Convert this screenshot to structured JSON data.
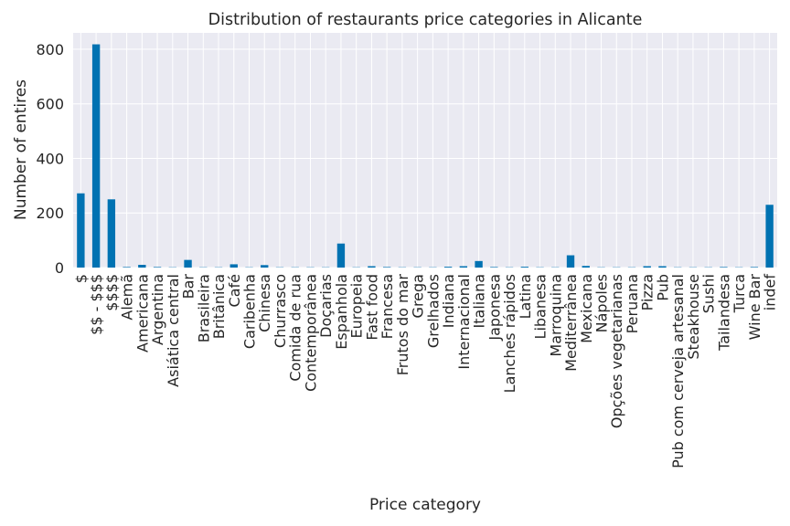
{
  "chart_data": {
    "type": "bar",
    "title": "Distribution of restaurants price categories in Alicante",
    "xlabel": "Price category",
    "ylabel": "Number of entires",
    "ylim": [
      0,
      860
    ],
    "yticks": [
      0,
      200,
      400,
      600,
      800
    ],
    "grid": true,
    "legend": "none",
    "categories": [
      "$",
      "$$ - $$$",
      "$$$$",
      "Alemã",
      "Americana",
      "Argentina",
      "Asiática central",
      "Bar",
      "Brasileira",
      "Britânica",
      "Café",
      "Caribenha",
      "Chinesa",
      "Churrasco",
      "Comida de rua",
      "Contemporânea",
      "Doçarias",
      "Espanhola",
      "Europeia",
      "Fast food",
      "Francesa",
      "Frutos do mar",
      "Grega",
      "Grelhados",
      "Indiana",
      "Internacional",
      "Italiana",
      "Japonesa",
      "Lanches rápidos",
      "Latina",
      "Libanesa",
      "Marroquina",
      "Mediterrânea",
      "Mexicana",
      "Nápoles",
      "Opções vegetarianas",
      "Peruana",
      "Pizza",
      "Pub",
      "Pub com cerveja artesanal",
      "Steakhouse",
      "Sushi",
      "Tailandesa",
      "Turca",
      "Wine Bar",
      "indef"
    ],
    "values": [
      272,
      818,
      250,
      2,
      10,
      2,
      1,
      28,
      1,
      1,
      12,
      1,
      9,
      1,
      1,
      1,
      1,
      88,
      1,
      5,
      2,
      1,
      1,
      1,
      3,
      5,
      24,
      2,
      1,
      3,
      1,
      1,
      45,
      6,
      1,
      1,
      1,
      5,
      5,
      1,
      1,
      1,
      2,
      1,
      2,
      230
    ],
    "bar_color": "#0072b2",
    "plot_background": "#eaeaf2",
    "grid_color": "#ffffff"
  }
}
